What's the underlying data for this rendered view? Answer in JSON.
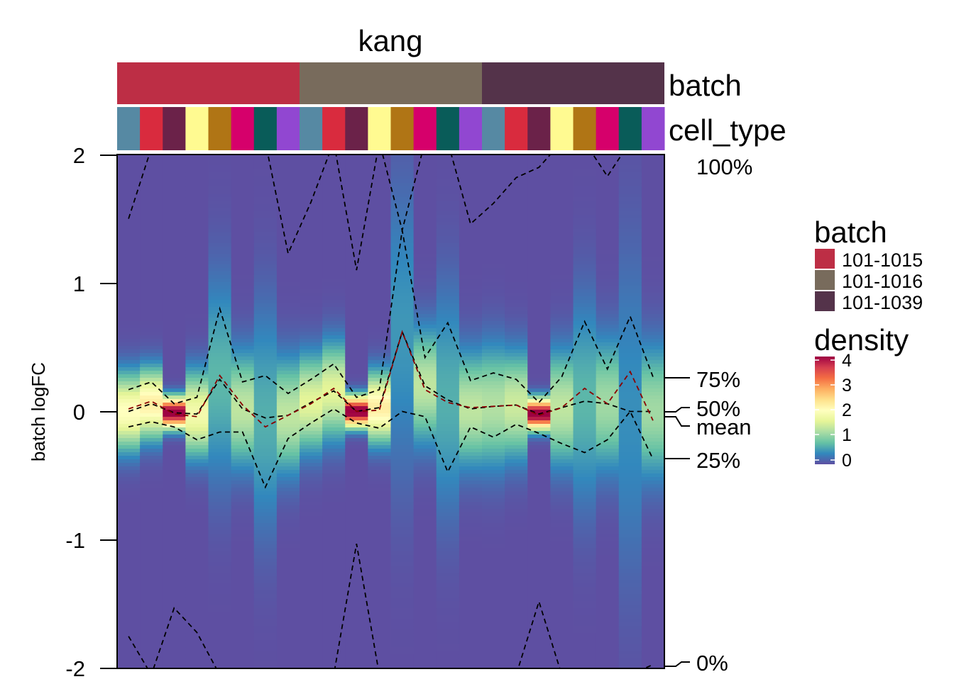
{
  "chart_data": {
    "type": "heatmap",
    "title": "kang",
    "ylabel": "batch logFC",
    "ylim": [
      -2,
      2
    ],
    "yticks": [
      "2",
      "1",
      "0",
      "-1",
      "-2"
    ],
    "annotations": {
      "batch_label": "batch",
      "cell_type_label": "cell_type",
      "batch_groups": [
        {
          "name": "101-1015",
          "color": "#BD2E45",
          "columns": 8
        },
        {
          "name": "101-1016",
          "color": "#786B5C",
          "columns": 8
        },
        {
          "name": "101-1039",
          "color": "#54334A",
          "columns": 8
        }
      ],
      "cell_type_colors": [
        "#5689A3",
        "#D92B3E",
        "#6B2249",
        "#FFFA91",
        "#B07515",
        "#D6006B",
        "#095C59",
        "#9147D1"
      ]
    },
    "quantile_labels": [
      "100%",
      "75%",
      "50%",
      "mean",
      "25%",
      "0%"
    ],
    "summary_values": [
      0.27,
      0.0,
      -0.04,
      -0.36,
      -2.0
    ],
    "legend": {
      "position": "right",
      "batch_title": "batch",
      "batch_items": [
        {
          "label": "101-1015",
          "color": "#BD2E45"
        },
        {
          "label": "101-1016",
          "color": "#786B5C"
        },
        {
          "label": "101-1039",
          "color": "#54334A"
        }
      ],
      "density_title": "density",
      "density_ticks": [
        "4",
        "3",
        "2",
        "1",
        "0"
      ]
    },
    "columns": [
      {
        "batch": "101-1015",
        "cell_type_index": 0,
        "q100": 1.5,
        "q75": 0.17,
        "median": 0.0,
        "mean": 0.02,
        "q25": -0.12,
        "q0": -1.75,
        "sd": 0.2
      },
      {
        "batch": "101-1015",
        "cell_type_index": 1,
        "q100": 2.05,
        "q75": 0.23,
        "median": 0.06,
        "mean": 0.08,
        "q25": -0.08,
        "q0": -2.05,
        "sd": 0.18
      },
      {
        "batch": "101-1015",
        "cell_type_index": 2,
        "q100": 2.1,
        "q75": 0.06,
        "median": -0.01,
        "mean": -0.02,
        "q25": -0.12,
        "q0": -1.53,
        "sd": 0.08
      },
      {
        "batch": "101-1015",
        "cell_type_index": 3,
        "q100": 2.1,
        "q75": 0.11,
        "median": -0.02,
        "mean": -0.04,
        "q25": -0.22,
        "q0": -1.72,
        "sd": 0.22
      },
      {
        "batch": "101-1015",
        "cell_type_index": 4,
        "q100": 2.1,
        "q75": 0.8,
        "median": 0.25,
        "mean": 0.28,
        "q25": -0.16,
        "q0": -2.05,
        "sd": 0.55
      },
      {
        "batch": "101-1015",
        "cell_type_index": 5,
        "q100": 2.1,
        "q75": 0.23,
        "median": 0.02,
        "mean": 0.05,
        "q25": -0.16,
        "q0": -2.05,
        "sd": 0.3
      },
      {
        "batch": "101-1015",
        "cell_type_index": 6,
        "q100": 2.1,
        "q75": 0.28,
        "median": -0.05,
        "mean": -0.12,
        "q25": -0.59,
        "q0": -2.05,
        "sd": 0.6
      },
      {
        "batch": "101-1015",
        "cell_type_index": 7,
        "q100": 1.23,
        "q75": 0.14,
        "median": -0.03,
        "mean": -0.03,
        "q25": -0.21,
        "q0": -2.05,
        "sd": 0.3
      },
      {
        "batch": "101-1016",
        "cell_type_index": 0,
        "q100": 1.63,
        "q75": 0.25,
        "median": 0.07,
        "mean": 0.06,
        "q25": -0.09,
        "q0": -2.05,
        "sd": 0.25
      },
      {
        "batch": "101-1016",
        "cell_type_index": 1,
        "q100": 2.1,
        "q75": 0.37,
        "median": 0.16,
        "mean": 0.18,
        "q25": 0.02,
        "q0": -2.05,
        "sd": 0.25
      },
      {
        "batch": "101-1016",
        "cell_type_index": 2,
        "q100": 1.1,
        "q75": 0.11,
        "median": 0.0,
        "mean": 0.0,
        "q25": -0.09,
        "q0": -1.03,
        "sd": 0.08
      },
      {
        "batch": "101-1016",
        "cell_type_index": 3,
        "q100": 2.1,
        "q75": 0.17,
        "median": 0.03,
        "mean": 0.01,
        "q25": -0.13,
        "q0": -2.05,
        "sd": 0.18
      },
      {
        "batch": "101-1016",
        "cell_type_index": 4,
        "q100": 1.41,
        "q75": 1.41,
        "median": 0.62,
        "mean": 0.62,
        "q25": 0.0,
        "q0": -2.05,
        "sd": 0.8
      },
      {
        "batch": "101-1016",
        "cell_type_index": 5,
        "q100": 2.1,
        "q75": 0.42,
        "median": 0.2,
        "mean": 0.17,
        "q25": -0.04,
        "q0": -2.05,
        "sd": 0.3
      },
      {
        "batch": "101-1016",
        "cell_type_index": 6,
        "q100": 2.1,
        "q75": 0.69,
        "median": 0.09,
        "mean": 0.07,
        "q25": -0.47,
        "q0": -2.05,
        "sd": 0.6
      },
      {
        "batch": "101-1016",
        "cell_type_index": 7,
        "q100": 1.46,
        "q75": 0.24,
        "median": 0.02,
        "mean": 0.03,
        "q25": -0.12,
        "q0": -2.05,
        "sd": 0.3
      },
      {
        "batch": "101-1039",
        "cell_type_index": 0,
        "q100": 1.62,
        "q75": 0.3,
        "median": 0.04,
        "mean": 0.04,
        "q25": -0.2,
        "q0": -2.05,
        "sd": 0.32
      },
      {
        "batch": "101-1039",
        "cell_type_index": 1,
        "q100": 1.82,
        "q75": 0.25,
        "median": 0.05,
        "mean": 0.05,
        "q25": -0.1,
        "q0": -2.05,
        "sd": 0.28
      },
      {
        "batch": "101-1039",
        "cell_type_index": 2,
        "q100": 1.9,
        "q75": 0.07,
        "median": -0.02,
        "mean": -0.03,
        "q25": -0.17,
        "q0": -1.48,
        "sd": 0.08
      },
      {
        "batch": "101-1039",
        "cell_type_index": 3,
        "q100": 2.1,
        "q75": 0.27,
        "median": 0.03,
        "mean": 0.03,
        "q25": -0.25,
        "q0": -2.05,
        "sd": 0.3
      },
      {
        "batch": "101-1039",
        "cell_type_index": 4,
        "q100": 2.1,
        "q75": 0.7,
        "median": 0.08,
        "mean": 0.18,
        "q25": -0.32,
        "q0": -2.05,
        "sd": 0.55
      },
      {
        "batch": "101-1039",
        "cell_type_index": 5,
        "q100": 1.83,
        "q75": 0.33,
        "median": 0.06,
        "mean": 0.06,
        "q25": -0.22,
        "q0": -2.05,
        "sd": 0.35
      },
      {
        "batch": "101-1039",
        "cell_type_index": 6,
        "q100": 2.1,
        "q75": 0.74,
        "median": 0.0,
        "mean": 0.31,
        "q25": 0.0,
        "q0": -2.05,
        "sd": 0.9
      },
      {
        "batch": "101-1039",
        "cell_type_index": 7,
        "q100": 2.1,
        "q75": 0.27,
        "median": 0.0,
        "mean": -0.07,
        "q25": -0.37,
        "q0": -1.97,
        "sd": 0.35
      }
    ]
  }
}
